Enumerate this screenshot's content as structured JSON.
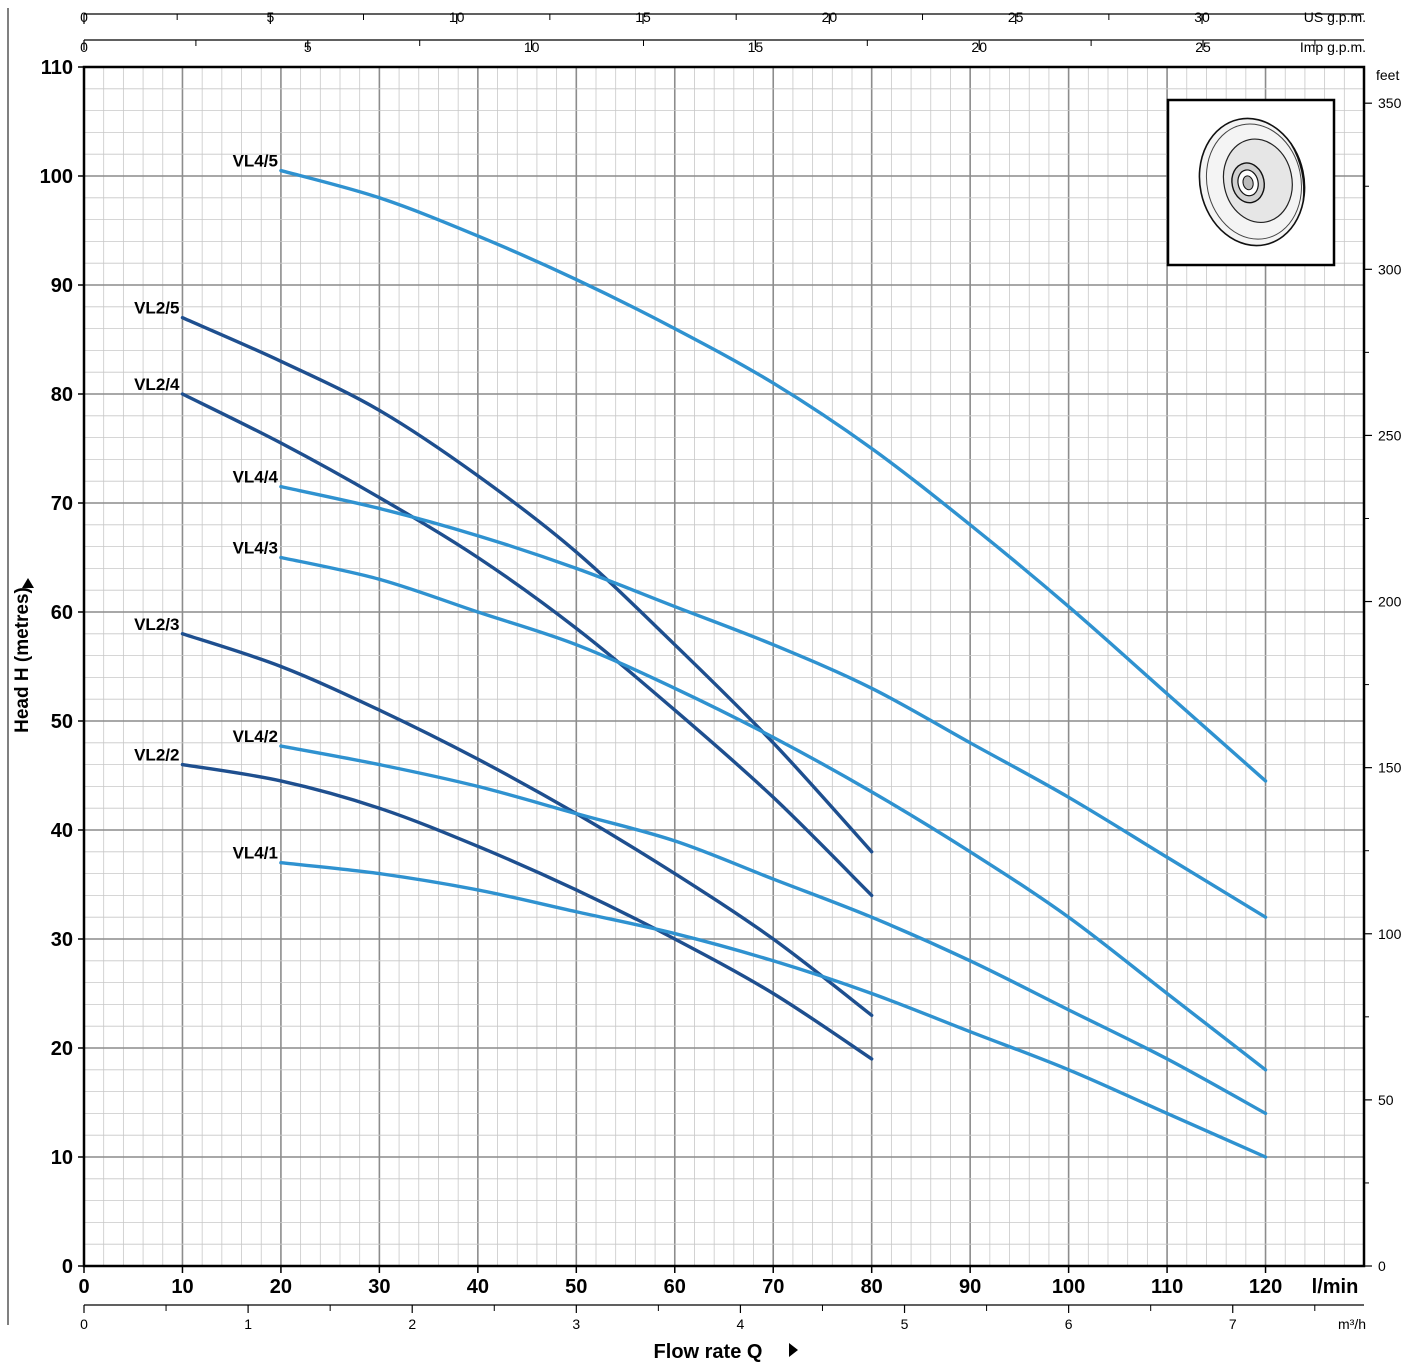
{
  "colors": {
    "grid_major": "#8c8c8c",
    "grid_minor": "#c8c8c8",
    "vl2": "#1e4f8f",
    "vl4": "#2f92d0",
    "axis": "#000000"
  },
  "chart_data": {
    "type": "line",
    "title": "",
    "xlabel": "Flow rate  Q",
    "ylabel": "Head H (metres)",
    "xunit": "l/min",
    "xlim": [
      0,
      130
    ],
    "ylim": [
      0,
      110
    ],
    "grid": true,
    "x_ticks": [
      0,
      10,
      20,
      30,
      40,
      50,
      60,
      70,
      80,
      90,
      100,
      110,
      120
    ],
    "y_ticks": [
      0,
      10,
      20,
      30,
      40,
      50,
      60,
      70,
      80,
      90,
      100,
      110
    ],
    "secondary_axes": {
      "us_gpm": {
        "unit": "US g.p.m.",
        "ticks": [
          0,
          5,
          10,
          15,
          20,
          25,
          30
        ],
        "lpm_per_unit": 3.785
      },
      "imp_gpm": {
        "unit": "Imp g.p.m.",
        "ticks": [
          0,
          5,
          10,
          15,
          20,
          25
        ],
        "lpm_per_unit": 4.546
      },
      "m3h": {
        "unit": "m³/h",
        "ticks": [
          0,
          1,
          2,
          3,
          4,
          5,
          6,
          7
        ],
        "lpm_per_unit": 16.667
      },
      "feet": {
        "unit": "feet",
        "ticks": [
          0,
          50,
          100,
          150,
          200,
          250,
          300,
          350
        ],
        "m_per_unit": 0.3048
      }
    },
    "series": [
      {
        "name": "VL4/5",
        "group": "vl4",
        "x": [
          20,
          30,
          40,
          50,
          60,
          70,
          80,
          90,
          100,
          110,
          120
        ],
        "y": [
          100.5,
          98,
          94.5,
          90.5,
          86,
          81,
          75,
          68,
          60.5,
          52.5,
          44.5
        ]
      },
      {
        "name": "VL2/5",
        "group": "vl2",
        "x": [
          10,
          20,
          30,
          40,
          50,
          60,
          70,
          80
        ],
        "y": [
          87,
          83,
          78.5,
          72.5,
          65.5,
          57,
          48,
          38
        ]
      },
      {
        "name": "VL2/4",
        "group": "vl2",
        "x": [
          10,
          20,
          30,
          40,
          50,
          60,
          70,
          80
        ],
        "y": [
          80,
          75.5,
          70.5,
          65,
          58.5,
          51,
          43,
          34
        ]
      },
      {
        "name": "VL4/4",
        "group": "vl4",
        "x": [
          20,
          30,
          40,
          50,
          60,
          70,
          80,
          90,
          100,
          110,
          120
        ],
        "y": [
          71.5,
          69.5,
          67,
          64,
          60.5,
          57,
          53,
          48,
          43,
          37.5,
          32
        ]
      },
      {
        "name": "VL4/3",
        "group": "vl4",
        "x": [
          20,
          30,
          40,
          50,
          60,
          70,
          80,
          90,
          100,
          110,
          120
        ],
        "y": [
          65,
          63,
          60,
          57,
          53,
          48.5,
          43.5,
          38,
          32,
          25,
          18
        ]
      },
      {
        "name": "VL2/3",
        "group": "vl2",
        "x": [
          10,
          20,
          30,
          40,
          50,
          60,
          70,
          80
        ],
        "y": [
          58,
          55,
          51,
          46.5,
          41.5,
          36,
          30,
          23
        ]
      },
      {
        "name": "VL4/2",
        "group": "vl4",
        "x": [
          20,
          30,
          40,
          50,
          60,
          70,
          80,
          90,
          100,
          110,
          120
        ],
        "y": [
          47.7,
          46,
          44,
          41.5,
          39,
          35.5,
          32,
          28,
          23.5,
          19,
          14
        ]
      },
      {
        "name": "VL2/2",
        "group": "vl2",
        "x": [
          10,
          20,
          30,
          40,
          50,
          60,
          70,
          80
        ],
        "y": [
          46,
          44.5,
          42,
          38.5,
          34.5,
          30,
          25,
          19
        ]
      },
      {
        "name": "VL4/1",
        "group": "vl4",
        "x": [
          20,
          30,
          40,
          50,
          60,
          70,
          80,
          90,
          100,
          110,
          120
        ],
        "y": [
          37,
          36,
          34.5,
          32.5,
          30.5,
          28,
          25,
          21.5,
          18,
          14,
          10
        ]
      }
    ]
  }
}
